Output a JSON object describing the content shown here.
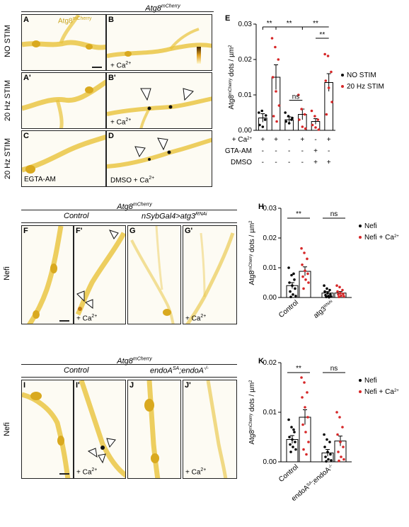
{
  "section1": {
    "header_prefix": "Atg8",
    "header_sup": "mCherry",
    "panels": {
      "A": {
        "label": "A",
        "note": "",
        "inset_prefix": "Atg8",
        "inset_sup": "mCherry"
      },
      "B": {
        "label": "B",
        "note_prefix": "+ Ca",
        "note_sup": "2+"
      },
      "A2": {
        "label": "A'"
      },
      "B2": {
        "label": "B'",
        "note_prefix": "+ Ca",
        "note_sup": "2+"
      },
      "C": {
        "label": "C",
        "note": "EGTA-AM"
      },
      "D": {
        "label": "D",
        "note_prefix": "DMSO + Ca",
        "note_sup": "2+"
      }
    },
    "row_labels": [
      "NO STIM",
      "20 Hz STIM",
      "20 Hz STIM"
    ]
  },
  "section2": {
    "header_prefix": "Atg8",
    "header_sup": "mCherry",
    "group_left": "Control",
    "group_right_prefix": "nSybGal4>atg3",
    "group_right_sup": "RNAi",
    "row_label": "Nefi",
    "panels": {
      "F": {
        "label": "F"
      },
      "F2": {
        "label": "F'",
        "note_prefix": "+ Ca",
        "note_sup": "2+"
      },
      "G": {
        "label": "G"
      },
      "G2": {
        "label": "G'",
        "note_prefix": "+ Ca",
        "note_sup": "2+"
      }
    }
  },
  "section3": {
    "header_prefix": "Atg8",
    "header_sup": "mCherry",
    "group_left": "Control",
    "group_right_prefix1": "endoA",
    "group_right_sup1": "SA",
    "group_right_mid": ";endoA",
    "group_right_sup2": "-/-",
    "row_label": "Nefi",
    "panels": {
      "I": {
        "label": "I"
      },
      "I2": {
        "label": "I'",
        "note_prefix": "+ Ca",
        "note_sup": "2+"
      },
      "J": {
        "label": "J"
      },
      "J2": {
        "label": "J'",
        "note_prefix": "+ Ca",
        "note_sup": "2+"
      }
    }
  },
  "chart_data": [
    {
      "panel": "E",
      "type": "bar",
      "ylabel_prefix": "Atg8",
      "ylabel_sup": "mCherry",
      "ylabel_suffix": " dots / µm",
      "ylabel_sup2": "2",
      "ylim": [
        0,
        0.03
      ],
      "yticks": [
        "0.00",
        "0.01",
        "0.02",
        "0.03"
      ],
      "legend": [
        {
          "name": "NO STIM",
          "color": "#000000"
        },
        {
          "name": "20 Hz STIM",
          "color": "#d62728"
        }
      ],
      "bars": [
        {
          "mean": 0.0035,
          "err": 0.0012,
          "group": "NO STIM",
          "points": [
            0.005,
            0.0055,
            0.003,
            0.0015,
            0.001,
            0.0042
          ]
        },
        {
          "mean": 0.015,
          "err": 0.0035,
          "group": "20 Hz STIM",
          "points": [
            0.026,
            0.0235,
            0.02,
            0.015,
            0.011,
            0.007,
            0.004,
            0.0025
          ]
        },
        {
          "mean": 0.003,
          "err": 0.0008,
          "group": "NO STIM",
          "points": [
            0.005,
            0.004,
            0.003,
            0.0025,
            0.002,
            0.0035
          ]
        },
        {
          "mean": 0.0045,
          "err": 0.0015,
          "group": "20 Hz STIM",
          "points": [
            0.01,
            0.006,
            0.0045,
            0.003,
            0.001,
            0.0005
          ]
        },
        {
          "mean": 0.0025,
          "err": 0.0008,
          "group": "20 Hz STIM",
          "points": [
            0.0055,
            0.004,
            0.003,
            0.0015,
            0.0008,
            0.0002
          ]
        },
        {
          "mean": 0.0135,
          "err": 0.0025,
          "group": "20 Hz STIM",
          "points": [
            0.0215,
            0.021,
            0.0165,
            0.014,
            0.012,
            0.008,
            0.0045
          ]
        }
      ],
      "condition_rows": [
        {
          "label_prefix": "+ Ca",
          "label_sup": "2+",
          "values": [
            "+",
            "+",
            "-",
            "+",
            "-",
            "+"
          ]
        },
        {
          "label": "EGTA-AM",
          "values": [
            "-",
            "-",
            "-",
            "-",
            "+",
            "-"
          ]
        },
        {
          "label": "DMSO",
          "values": [
            "-",
            "-",
            "-",
            "-",
            "+",
            "+"
          ]
        }
      ],
      "significance": [
        {
          "from": 0,
          "to": 1,
          "text": "**"
        },
        {
          "from": 1,
          "to": 3,
          "text": "**"
        },
        {
          "from": 3,
          "to": 5,
          "text": "**"
        },
        {
          "from": 4,
          "to": 5,
          "text": "**"
        },
        {
          "from": 2,
          "to": 3,
          "text": "ns"
        }
      ]
    },
    {
      "panel": "H",
      "type": "bar",
      "ylabel_prefix": "Atg8",
      "ylabel_sup": "mCherry",
      "ylabel_suffix": " dots / µm",
      "ylabel_sup2": "2",
      "ylim": [
        0,
        0.03
      ],
      "yticks": [
        "0.00",
        "0.01",
        "0.02",
        "0.03"
      ],
      "categories": [
        "Control",
        "atg3"
      ],
      "category_sup": [
        "",
        "RNAi"
      ],
      "legend": [
        {
          "name": "Nefi",
          "color": "#000000"
        },
        {
          "name_prefix": "Nefi + Ca",
          "name_sup": "2+",
          "color": "#d62728"
        }
      ],
      "series": [
        {
          "name": "Nefi",
          "values": [
            0.004,
            0.0015
          ],
          "err": [
            0.001,
            0.0005
          ],
          "points": [
            [
              0.01,
              0.0075,
              0.006,
              0.005,
              0.004,
              0.003,
              0.002,
              0.001,
              0.0005,
              0.0002,
              0.008
            ],
            [
              0.004,
              0.003,
              0.0025,
              0.002,
              0.0015,
              0.001,
              0.0008,
              0.0005,
              0.0003,
              0.0002,
              0.0001
            ]
          ]
        },
        {
          "name": "Nefi + Ca2+",
          "values": [
            0.0088,
            0.0015
          ],
          "err": [
            0.0015,
            0.0005
          ],
          "points": [
            [
              0.0165,
              0.015,
              0.013,
              0.011,
              0.009,
              0.008,
              0.007,
              0.006,
              0.005,
              0.003
            ],
            [
              0.004,
              0.0035,
              0.0025,
              0.002,
              0.0015,
              0.0012,
              0.001,
              0.0006,
              0.0004,
              0.0002
            ]
          ]
        }
      ],
      "significance": [
        {
          "category": 0,
          "text": "**"
        },
        {
          "category": 1,
          "text": "ns"
        }
      ]
    },
    {
      "panel": "K",
      "type": "bar",
      "ylabel_prefix": "Atg8",
      "ylabel_sup": "mCherry",
      "ylabel_suffix": " dots / µm",
      "ylabel_sup2": "2",
      "ylim": [
        0,
        0.02
      ],
      "yticks": [
        "0.00",
        "0.01",
        "0.02"
      ],
      "categories": [
        "Control",
        "endoA"
      ],
      "category_sup": [
        "",
        "SA"
      ],
      "category_suffix": [
        "",
        ";endoA"
      ],
      "category_sup2": [
        "",
        "-/-"
      ],
      "legend": [
        {
          "name": "Nefi",
          "color": "#000000"
        },
        {
          "name_prefix": "Nefi + Ca",
          "name_sup": "2+",
          "color": "#d62728"
        }
      ],
      "series": [
        {
          "name": "Nefi",
          "values": [
            0.0045,
            0.0018
          ],
          "err": [
            0.0008,
            0.0007
          ],
          "points": [
            [
              0.0085,
              0.007,
              0.006,
              0.005,
              0.0045,
              0.004,
              0.0035,
              0.003,
              0.0025,
              0.002,
              0.0065
            ],
            [
              0.0055,
              0.0045,
              0.004,
              0.003,
              0.002,
              0.0015,
              0.001,
              0.0005,
              0.0003,
              0.0001
            ]
          ]
        },
        {
          "name": "Nefi + Ca2+",
          "values": [
            0.009,
            0.0042
          ],
          "err": [
            0.0015,
            0.001
          ],
          "points": [
            [
              0.017,
              0.016,
              0.014,
              0.013,
              0.011,
              0.009,
              0.0075,
              0.006,
              0.004,
              0.0025,
              0.0015
            ],
            [
              0.01,
              0.009,
              0.007,
              0.0055,
              0.004,
              0.003,
              0.002,
              0.001,
              0.0005,
              0.0002
            ]
          ]
        }
      ],
      "significance": [
        {
          "category": 0,
          "text": "**"
        },
        {
          "category": 1,
          "text": "ns"
        }
      ]
    }
  ]
}
